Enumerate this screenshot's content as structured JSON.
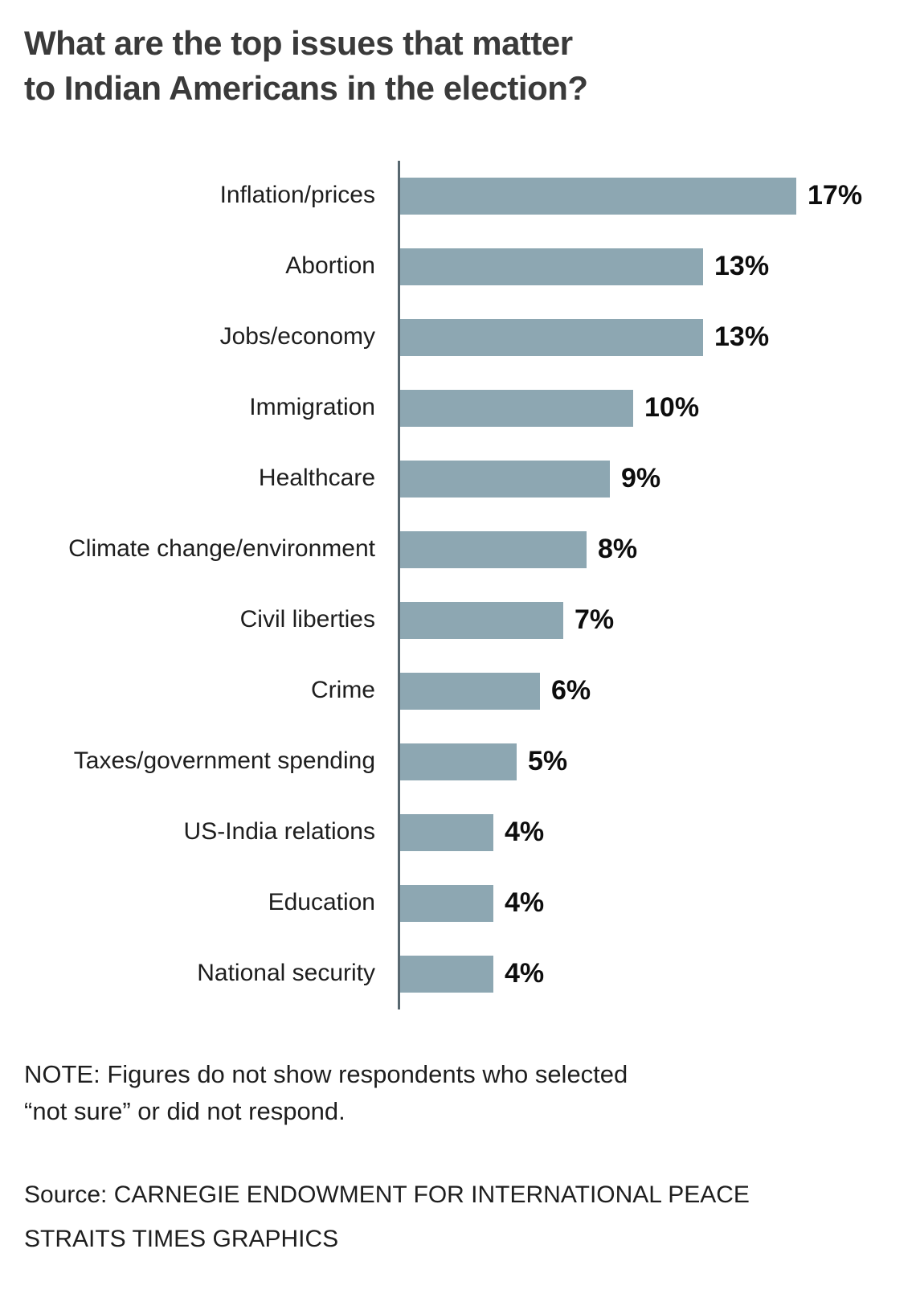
{
  "title": {
    "line1": "What are the top issues that matter",
    "line2": "to Indian Americans in the election?"
  },
  "chart_data": {
    "type": "bar",
    "orientation": "horizontal",
    "title": "What are the top issues that matter to Indian Americans in the election?",
    "categories": [
      "Inflation/prices",
      "Abortion",
      "Jobs/economy",
      "Immigration",
      "Healthcare",
      "Climate change/environment",
      "Civil liberties",
      "Crime",
      "Taxes/government spending",
      "US-India relations",
      "Education",
      "National security"
    ],
    "values": [
      17,
      13,
      13,
      10,
      9,
      8,
      7,
      6,
      5,
      4,
      4,
      4
    ],
    "value_labels": [
      "17%",
      "13%",
      "13%",
      "10%",
      "9%",
      "8%",
      "7%",
      "6%",
      "5%",
      "4%",
      "4%",
      "4%"
    ],
    "xlabel": "",
    "ylabel": "",
    "xlim": [
      0,
      17
    ],
    "grid": false,
    "legend": false,
    "bar_color": "#8da7b2",
    "axis_color": "#586870"
  },
  "note": {
    "line1": "NOTE: Figures do not show respondents who selected",
    "line2": "“not sure” or did not respond."
  },
  "source": {
    "line1": "Source: CARNEGIE ENDOWMENT FOR INTERNATIONAL PEACE",
    "line2": "STRAITS TIMES GRAPHICS"
  }
}
